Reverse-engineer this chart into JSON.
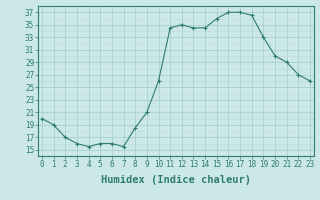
{
  "x": [
    0,
    1,
    2,
    3,
    4,
    5,
    6,
    7,
    8,
    9,
    10,
    11,
    12,
    13,
    14,
    15,
    16,
    17,
    18,
    19,
    20,
    21,
    22,
    23
  ],
  "y": [
    20,
    19,
    17,
    16,
    15.5,
    16,
    16,
    15.5,
    18.5,
    21,
    26,
    34.5,
    35,
    34.5,
    34.5,
    36,
    37,
    37,
    36.5,
    33,
    30,
    29,
    27,
    26
  ],
  "line_color": "#2e7d6e",
  "marker": "+",
  "marker_size": 4,
  "bg_color": "#cce8e6",
  "grid_color_major": "#aacfcc",
  "grid_color_minor": "#bddbd9",
  "xlabel": "Humidex (Indice chaleur)",
  "ylim": [
    14,
    38
  ],
  "yticks": [
    15,
    17,
    19,
    21,
    23,
    25,
    27,
    29,
    31,
    33,
    35,
    37
  ],
  "xticks": [
    0,
    1,
    2,
    3,
    4,
    5,
    6,
    7,
    8,
    9,
    10,
    11,
    12,
    13,
    14,
    15,
    16,
    17,
    18,
    19,
    20,
    21,
    22,
    23
  ],
  "tick_label_fontsize": 5.5,
  "xlabel_fontsize": 7.5,
  "xlim": [
    -0.3,
    23.3
  ]
}
